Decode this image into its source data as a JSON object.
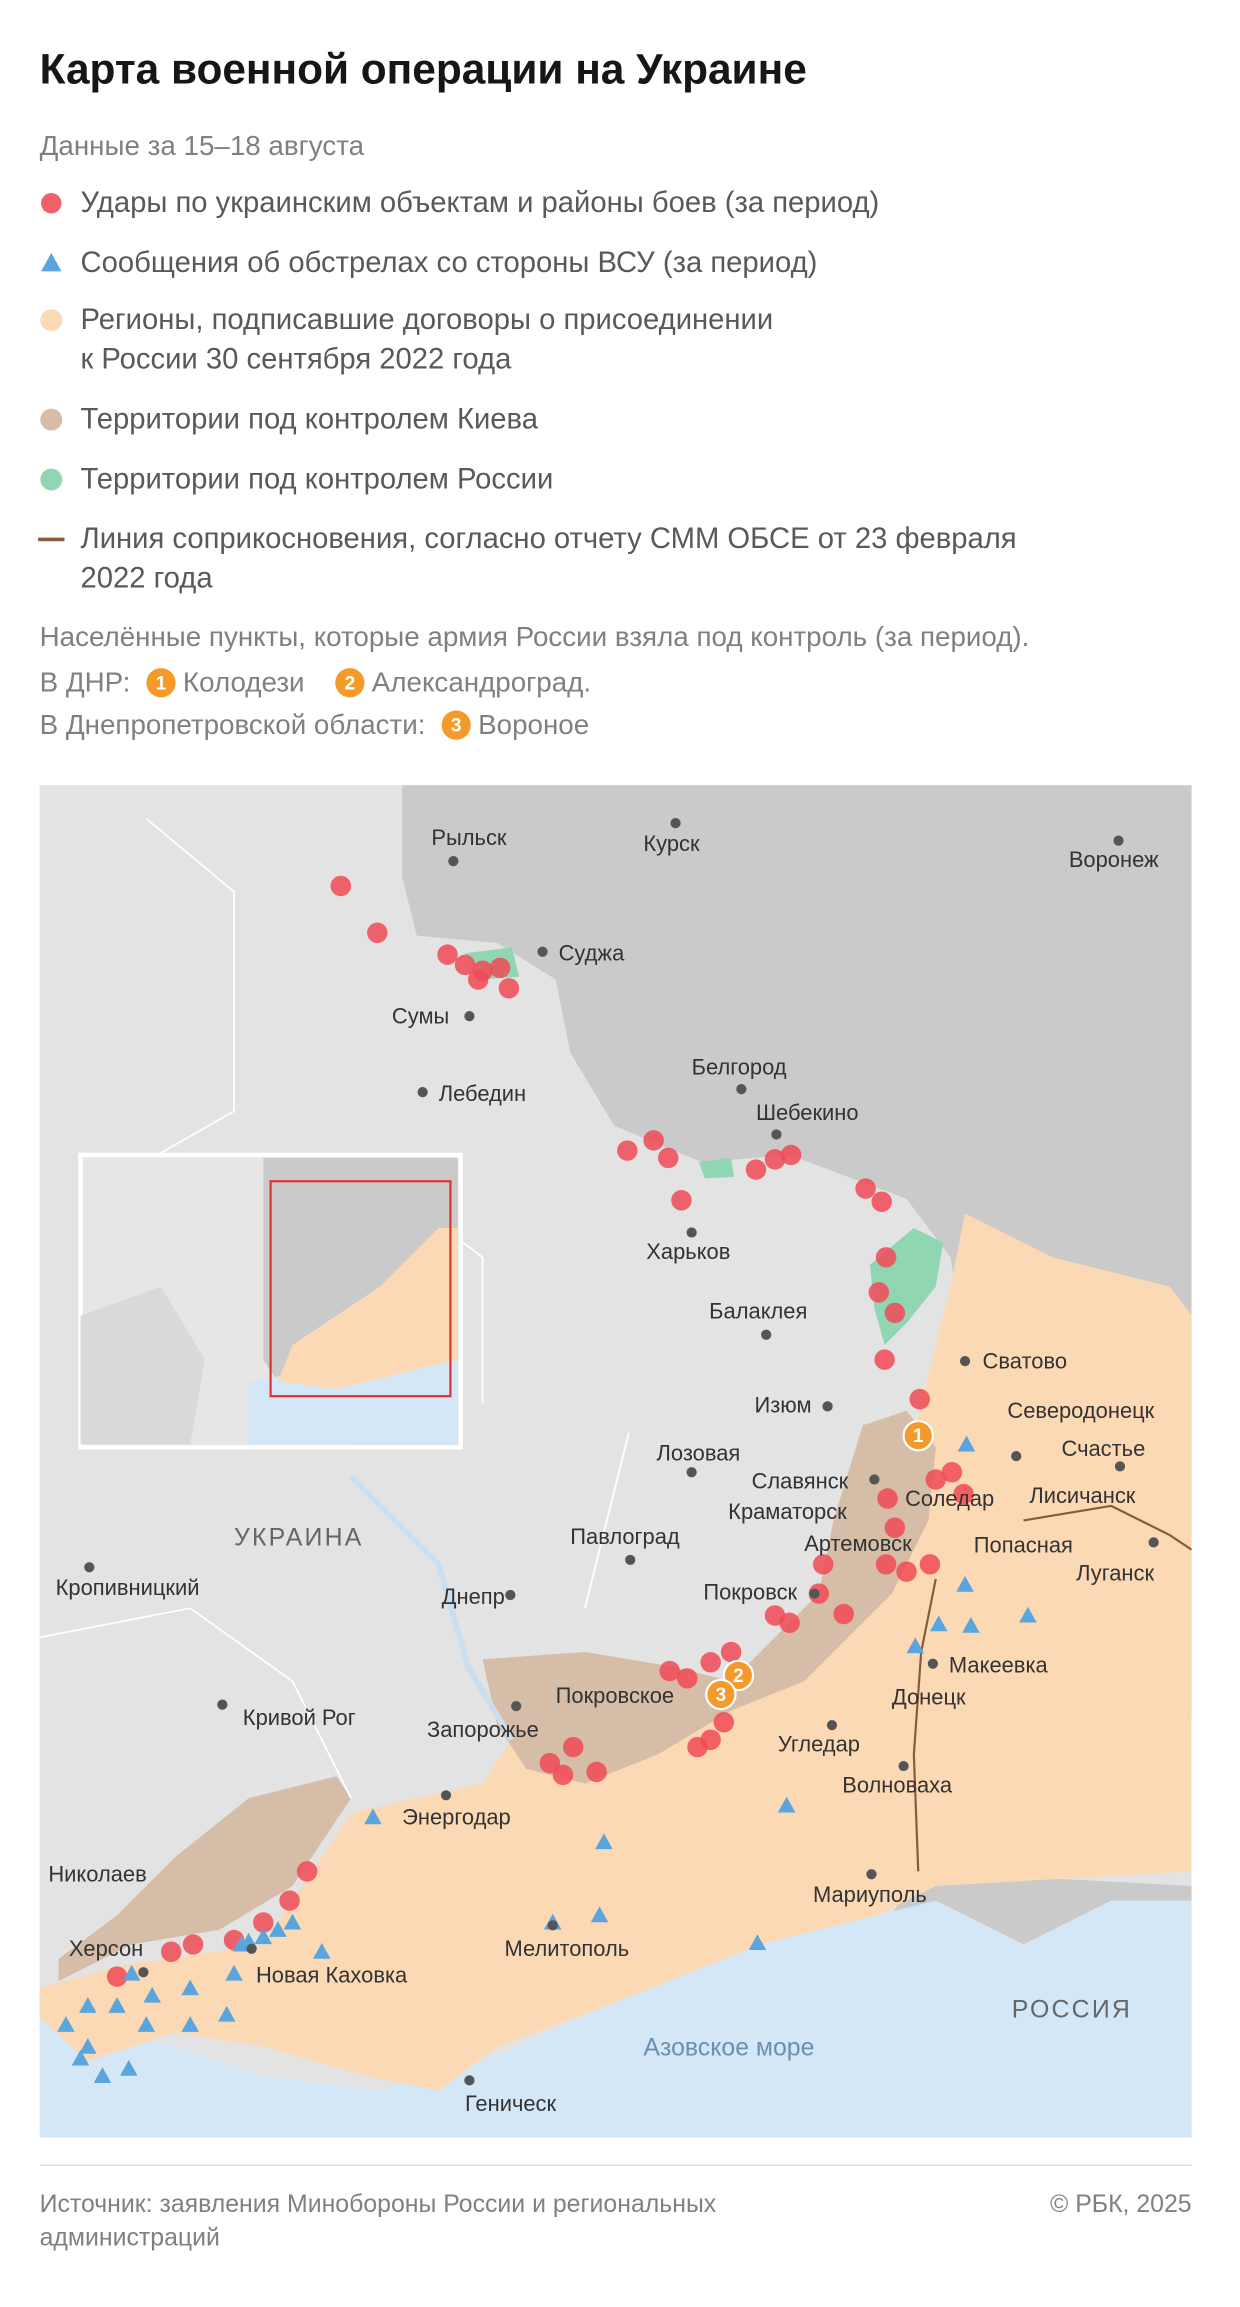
{
  "header": {
    "title": "Карта военной операции на Украине",
    "subtitle": "Данные за 15–18 августа"
  },
  "legend": [
    {
      "lines": [
        "Удары по украинским объектам и районы боев (за период)"
      ]
    },
    {
      "lines": [
        "Сообщения об обстрелах со стороны ВСУ (за период)"
      ]
    },
    {
      "lines": [
        "Регионы, подписавшие договоры о присоединении",
        "к России 30 сентября 2022 года"
      ]
    },
    {
      "lines": [
        "Территории под контролем Киева"
      ]
    },
    {
      "lines": [
        "Территории под контролем России"
      ]
    },
    {
      "lines": [
        "Линия соприкосновения, согласно отчету СММ ОБСЕ от 23 февраля",
        "2022 года"
      ]
    }
  ],
  "captured": {
    "title": "Населённые пункты, которые армия России взяла под контроль (за период).",
    "groups": [
      {
        "region": "В ДНР:",
        "items": [
          {
            "number": "1",
            "name": "Колодези"
          },
          {
            "number": "2",
            "name": "Александроград."
          }
        ]
      },
      {
        "region": "В Днепропетровской области:",
        "items": [
          {
            "number": "3",
            "name": "Вороное"
          }
        ]
      }
    ]
  },
  "map": {
    "cities": [
      "Рыльск",
      "Курск",
      "Воронеж",
      "Суджа",
      "Сумы",
      "Лебедин",
      "Белгород",
      "Шебекино",
      "Харьков",
      "Балаклея",
      "Сватово",
      "Изюм",
      "Северодонецк",
      "Счастье",
      "Лозовая",
      "Славянск",
      "Лисичанск",
      "Краматорск",
      "Соледар",
      "Артемовск",
      "Попасная",
      "Луганск",
      "Павлоград",
      "Днепр",
      "Покровск",
      "Макеевка",
      "Донецк",
      "Кропивницкий",
      "Покровское",
      "Кривой Рог",
      "Запорожье",
      "Угледар",
      "Волноваха",
      "Энергодар",
      "Николаев",
      "Мариуполь",
      "Херсон",
      "Мелитополь",
      "Новая Каховка",
      "Геническ"
    ],
    "countries": [
      "УКРАИНА",
      "РОССИЯ"
    ],
    "sea": "Азовское море"
  },
  "footer": {
    "source": [
      "Источник: заявления Минобороны России и региональных",
      "администраций"
    ],
    "copyright": "© РБК, 2025"
  }
}
